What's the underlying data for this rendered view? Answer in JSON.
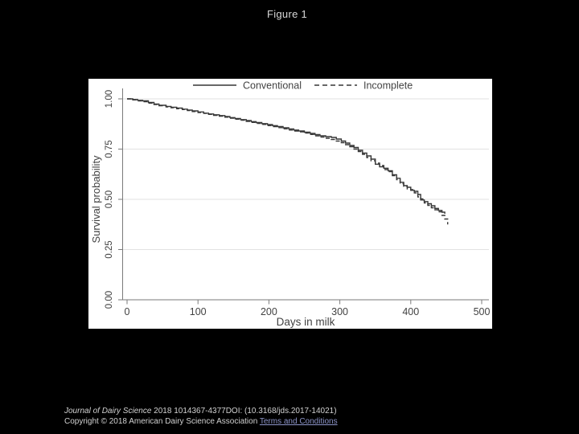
{
  "page": {
    "title": "Figure 1"
  },
  "footer": {
    "citation_journal": "Journal of Dairy Science",
    "citation_rest": " 2018 1014367-4377DOI: (10.3168/jds.2017-14021)",
    "copyright": "Copyright © 2018 American Dairy Science Association ",
    "terms_link": "Terms and Conditions"
  },
  "colors": {
    "background": "#000000",
    "panel": "#ffffff",
    "axis": "#7a7a7a",
    "chart_text": "#424242",
    "curve": "#373737",
    "grid": "#e2e2e2",
    "title_text": "#d8d8d8",
    "footer_text": "#d2d2d2",
    "link": "#8d95c9"
  },
  "chart_data": {
    "type": "line",
    "subtype": "kaplan-meier-step",
    "title": "",
    "xlabel": "Days in milk",
    "ylabel": "Survival probability",
    "xlim": [
      0,
      500
    ],
    "ylim": [
      0.0,
      1.0
    ],
    "x_ticks": [
      0,
      100,
      200,
      300,
      400,
      500
    ],
    "y_ticks": [
      "0.00",
      "0.25",
      "0.50",
      "0.75",
      "1.00"
    ],
    "grid": "horizontal-light",
    "legend_position": "top-center",
    "series": [
      {
        "name": "Conventional",
        "dash": "solid",
        "points": [
          [
            0,
            1.0
          ],
          [
            8,
            0.997
          ],
          [
            15,
            0.993
          ],
          [
            22,
            0.99
          ],
          [
            30,
            0.982
          ],
          [
            38,
            0.974
          ],
          [
            45,
            0.968
          ],
          [
            55,
            0.962
          ],
          [
            62,
            0.958
          ],
          [
            70,
            0.954
          ],
          [
            78,
            0.949
          ],
          [
            85,
            0.944
          ],
          [
            92,
            0.94
          ],
          [
            100,
            0.935
          ],
          [
            108,
            0.929
          ],
          [
            115,
            0.925
          ],
          [
            122,
            0.921
          ],
          [
            130,
            0.917
          ],
          [
            138,
            0.912
          ],
          [
            145,
            0.907
          ],
          [
            152,
            0.902
          ],
          [
            160,
            0.897
          ],
          [
            168,
            0.892
          ],
          [
            175,
            0.887
          ],
          [
            182,
            0.882
          ],
          [
            190,
            0.877
          ],
          [
            198,
            0.872
          ],
          [
            205,
            0.867
          ],
          [
            212,
            0.862
          ],
          [
            220,
            0.856
          ],
          [
            228,
            0.85
          ],
          [
            235,
            0.845
          ],
          [
            242,
            0.84
          ],
          [
            250,
            0.834
          ],
          [
            258,
            0.828
          ],
          [
            265,
            0.822
          ],
          [
            272,
            0.816
          ],
          [
            280,
            0.812
          ],
          [
            288,
            0.808
          ],
          [
            295,
            0.8
          ],
          [
            302,
            0.79
          ],
          [
            308,
            0.78
          ],
          [
            314,
            0.768
          ],
          [
            320,
            0.758
          ],
          [
            326,
            0.744
          ],
          [
            332,
            0.73
          ],
          [
            338,
            0.716
          ],
          [
            344,
            0.7
          ],
          [
            350,
            0.675
          ],
          [
            356,
            0.662
          ],
          [
            362,
            0.655
          ],
          [
            368,
            0.642
          ],
          [
            374,
            0.622
          ],
          [
            380,
            0.605
          ],
          [
            385,
            0.585
          ],
          [
            390,
            0.568
          ],
          [
            395,
            0.56
          ],
          [
            400,
            0.545
          ],
          [
            405,
            0.54
          ],
          [
            410,
            0.524
          ],
          [
            414,
            0.497
          ],
          [
            419,
            0.489
          ],
          [
            424,
            0.478
          ],
          [
            429,
            0.468
          ],
          [
            434,
            0.455
          ],
          [
            439,
            0.445
          ],
          [
            444,
            0.436
          ],
          [
            448,
            0.428
          ]
        ]
      },
      {
        "name": "Incomplete",
        "dash": "dashed",
        "points": [
          [
            0,
            1.0
          ],
          [
            8,
            0.995
          ],
          [
            15,
            0.99
          ],
          [
            22,
            0.986
          ],
          [
            30,
            0.979
          ],
          [
            38,
            0.972
          ],
          [
            45,
            0.966
          ],
          [
            55,
            0.96
          ],
          [
            62,
            0.956
          ],
          [
            70,
            0.951
          ],
          [
            78,
            0.947
          ],
          [
            85,
            0.942
          ],
          [
            92,
            0.937
          ],
          [
            100,
            0.932
          ],
          [
            108,
            0.928
          ],
          [
            115,
            0.923
          ],
          [
            122,
            0.918
          ],
          [
            130,
            0.914
          ],
          [
            138,
            0.909
          ],
          [
            145,
            0.904
          ],
          [
            152,
            0.899
          ],
          [
            160,
            0.894
          ],
          [
            168,
            0.888
          ],
          [
            175,
            0.883
          ],
          [
            182,
            0.878
          ],
          [
            190,
            0.873
          ],
          [
            198,
            0.867
          ],
          [
            205,
            0.862
          ],
          [
            212,
            0.857
          ],
          [
            220,
            0.851
          ],
          [
            228,
            0.845
          ],
          [
            235,
            0.84
          ],
          [
            242,
            0.836
          ],
          [
            250,
            0.83
          ],
          [
            258,
            0.823
          ],
          [
            265,
            0.816
          ],
          [
            272,
            0.81
          ],
          [
            280,
            0.804
          ],
          [
            288,
            0.798
          ],
          [
            295,
            0.79
          ],
          [
            302,
            0.782
          ],
          [
            308,
            0.772
          ],
          [
            314,
            0.762
          ],
          [
            320,
            0.75
          ],
          [
            326,
            0.738
          ],
          [
            332,
            0.724
          ],
          [
            338,
            0.708
          ],
          [
            344,
            0.692
          ],
          [
            350,
            0.68
          ],
          [
            356,
            0.668
          ],
          [
            362,
            0.648
          ],
          [
            368,
            0.638
          ],
          [
            374,
            0.618
          ],
          [
            380,
            0.598
          ],
          [
            385,
            0.578
          ],
          [
            390,
            0.565
          ],
          [
            395,
            0.552
          ],
          [
            400,
            0.548
          ],
          [
            405,
            0.532
          ],
          [
            410,
            0.512
          ],
          [
            414,
            0.502
          ],
          [
            419,
            0.482
          ],
          [
            424,
            0.47
          ],
          [
            429,
            0.458
          ],
          [
            434,
            0.448
          ],
          [
            439,
            0.438
          ],
          [
            444,
            0.42
          ],
          [
            448,
            0.402
          ],
          [
            452,
            0.375
          ]
        ]
      }
    ]
  }
}
